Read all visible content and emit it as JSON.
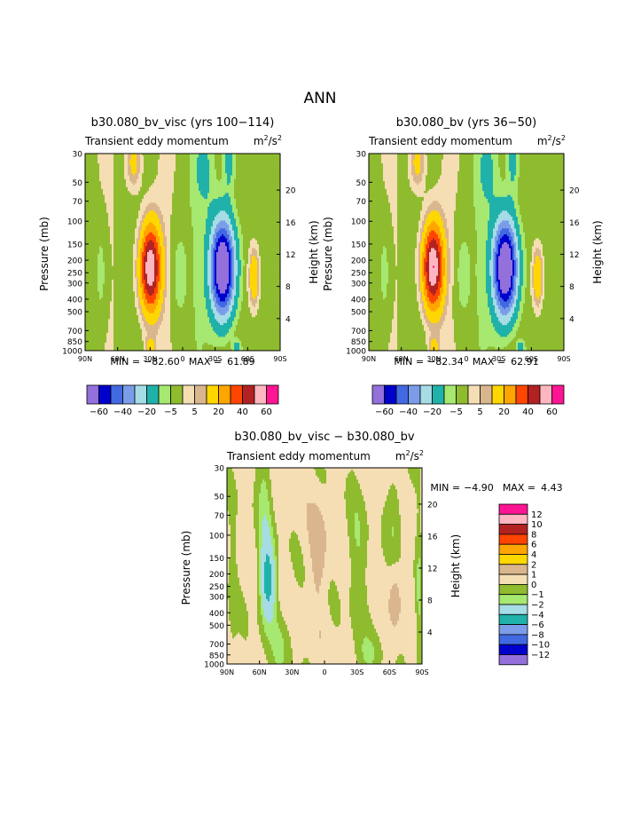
{
  "page_title": "ANN",
  "palettes": {
    "top": [
      "#9370db",
      "#0000cd",
      "#4169e1",
      "#7b9de9",
      "#a6dce6",
      "#20b2aa",
      "#a6e870",
      "#8fbc2f",
      "#f5deb3",
      "#dab68e",
      "#ffd700",
      "#ffa500",
      "#ff4500",
      "#b22222",
      "#ffb6c1",
      "#ff1493"
    ],
    "diff": [
      "#9370db",
      "#0000cd",
      "#4169e1",
      "#7b9de9",
      "#20b2aa",
      "#a6dce6",
      "#a6e870",
      "#8fbc2f",
      "#f5deb3",
      "#dab68e",
      "#ffd700",
      "#ffa500",
      "#ff4500",
      "#b22222",
      "#ffb6c1",
      "#ff1493"
    ]
  },
  "chart_data": [
    {
      "type": "contour",
      "title": "b30.080_bv_visc (yrs 100−114)",
      "variable": "Transient eddy momentum",
      "units_base": "m",
      "units_exp1": "2",
      "units_mid": "/s",
      "units_exp2": "2",
      "ylabel": "Pressure (mb)",
      "y2label": "Height (km)",
      "x_ticks": [
        "90N",
        "60N",
        "30N",
        "0",
        "30S",
        "60S",
        "90S"
      ],
      "x_values": [
        90,
        60,
        30,
        0,
        -30,
        -60,
        -90
      ],
      "y_ticks": [
        "30",
        "50",
        "70",
        "100",
        "150",
        "200",
        "250",
        "300",
        "400",
        "500",
        "700",
        "850",
        "1000"
      ],
      "y_values": [
        30,
        50,
        70,
        100,
        150,
        200,
        250,
        300,
        400,
        500,
        700,
        850,
        1000
      ],
      "y2_ticks": [
        "20",
        "16",
        "12",
        "8",
        "4"
      ],
      "y2_values": [
        20,
        16,
        12,
        8,
        4
      ],
      "min_label": "MIN =",
      "min_value": "−82.60",
      "max_label": "MAX =",
      "max_value": "61.89",
      "features": [
        {
          "lat": 30,
          "p": 230,
          "amp": 62,
          "lat_w": 10,
          "p_w": 0.8
        },
        {
          "lat": -37,
          "p": 230,
          "amp": -82,
          "lat_w": 11,
          "p_w": 0.85
        },
        {
          "lat": -66,
          "p": 270,
          "amp": 24,
          "lat_w": 5,
          "p_w": 0.55
        },
        {
          "lat": 5,
          "p": 260,
          "amp": -6,
          "lat_w": 8,
          "p_w": 1.0
        },
        {
          "lat": 45,
          "p": 35,
          "amp": 18,
          "lat_w": 7,
          "p_w": 0.5
        },
        {
          "lat": -20,
          "p": 40,
          "amp": -8,
          "lat_w": 10,
          "p_w": 0.7
        },
        {
          "lat": -43,
          "p": 30,
          "amp": -15,
          "lat_w": 6,
          "p_w": 0.7
        },
        {
          "lat": 75,
          "p": 250,
          "amp": -7,
          "lat_w": 6,
          "p_w": 1.0
        },
        {
          "lat": 30,
          "p": 950,
          "amp": 15,
          "lat_w": 5,
          "p_w": 0.2
        },
        {
          "lat": -50,
          "p": 970,
          "amp": -15,
          "lat_w": 4,
          "p_w": 0.15
        }
      ]
    },
    {
      "type": "contour",
      "title": "b30.080_bv (yrs 36−50)",
      "variable": "Transient eddy momentum",
      "units_base": "m",
      "units_exp1": "2",
      "units_mid": "/s",
      "units_exp2": "2",
      "ylabel": "Pressure (mb)",
      "y2label": "Height (km)",
      "x_ticks": [
        "90N",
        "60N",
        "30N",
        "0",
        "30S",
        "60S",
        "90S"
      ],
      "x_values": [
        90,
        60,
        30,
        0,
        -30,
        -60,
        -90
      ],
      "y_ticks": [
        "30",
        "50",
        "70",
        "100",
        "150",
        "200",
        "250",
        "300",
        "400",
        "500",
        "700",
        "850",
        "1000"
      ],
      "y_values": [
        30,
        50,
        70,
        100,
        150,
        200,
        250,
        300,
        400,
        500,
        700,
        850,
        1000
      ],
      "y2_ticks": [
        "20",
        "16",
        "12",
        "8",
        "4"
      ],
      "y2_values": [
        20,
        16,
        12,
        8,
        4
      ],
      "min_label": "MIN =",
      "min_value": "−82.34",
      "max_label": "MAX =",
      "max_value": "62.91",
      "features": [
        {
          "lat": 31,
          "p": 225,
          "amp": 63,
          "lat_w": 10,
          "p_w": 0.8
        },
        {
          "lat": -36,
          "p": 230,
          "amp": -82,
          "lat_w": 11,
          "p_w": 0.85
        },
        {
          "lat": -66,
          "p": 270,
          "amp": 24,
          "lat_w": 5,
          "p_w": 0.55
        },
        {
          "lat": 5,
          "p": 260,
          "amp": -6,
          "lat_w": 8,
          "p_w": 1.0
        },
        {
          "lat": 45,
          "p": 35,
          "amp": 18,
          "lat_w": 7,
          "p_w": 0.5
        },
        {
          "lat": -20,
          "p": 40,
          "amp": -8,
          "lat_w": 10,
          "p_w": 0.7
        },
        {
          "lat": -43,
          "p": 30,
          "amp": -15,
          "lat_w": 6,
          "p_w": 0.7
        },
        {
          "lat": 75,
          "p": 250,
          "amp": -7,
          "lat_w": 6,
          "p_w": 1.0
        },
        {
          "lat": 30,
          "p": 950,
          "amp": 15,
          "lat_w": 5,
          "p_w": 0.2
        },
        {
          "lat": -50,
          "p": 970,
          "amp": -15,
          "lat_w": 4,
          "p_w": 0.15
        }
      ]
    },
    {
      "type": "contour",
      "title": "b30.080_bv_visc − b30.080_bv",
      "variable": "Transient eddy momentum",
      "units_base": "m",
      "units_exp1": "2",
      "units_mid": "/s",
      "units_exp2": "2",
      "ylabel": "Pressure (mb)",
      "y2label": "Height (km)",
      "x_ticks": [
        "90N",
        "60N",
        "30N",
        "0",
        "30S",
        "60S",
        "90S"
      ],
      "x_values": [
        90,
        60,
        30,
        0,
        -30,
        -60,
        -90
      ],
      "y_ticks": [
        "30",
        "50",
        "70",
        "100",
        "150",
        "200",
        "250",
        "300",
        "400",
        "500",
        "700",
        "850",
        "1000"
      ],
      "y_values": [
        30,
        50,
        70,
        100,
        150,
        200,
        250,
        300,
        400,
        500,
        700,
        850,
        1000
      ],
      "y2_ticks": [
        "20",
        "16",
        "12",
        "8",
        "4"
      ],
      "y2_values": [
        20,
        16,
        12,
        8,
        4
      ],
      "min_label": "MIN =",
      "min_value": "−4.90",
      "max_label": "MAX =",
      "max_value": "4.43",
      "features": [
        {
          "lat": 52,
          "p": 230,
          "amp": -4.9,
          "lat_w": 7,
          "p_w": 0.7
        },
        {
          "lat": 55,
          "p": 60,
          "amp": -1.6,
          "lat_w": 7,
          "p_w": 1.5
        },
        {
          "lat": 40,
          "p": 700,
          "amp": -1.3,
          "lat_w": 10,
          "p_w": 0.6
        },
        {
          "lat": 5,
          "p": 130,
          "amp": 1.3,
          "lat_w": 8,
          "p_w": 0.9
        },
        {
          "lat": -65,
          "p": 280,
          "amp": 1.3,
          "lat_w": 6,
          "p_w": 0.8
        },
        {
          "lat": -30,
          "p": 150,
          "amp": -1.2,
          "lat_w": 9,
          "p_w": 1.2
        },
        {
          "lat": -65,
          "p": 80,
          "amp": -1.4,
          "lat_w": 7,
          "p_w": 0.9
        },
        {
          "lat": -40,
          "p": 850,
          "amp": -1.2,
          "lat_w": 12,
          "p_w": 0.4
        },
        {
          "lat": 85,
          "p": 300,
          "amp": -0.8,
          "lat_w": 4,
          "p_w": 1.5
        },
        {
          "lat": -87,
          "p": 400,
          "amp": -1.5,
          "lat_w": 3,
          "p_w": 1.5
        }
      ]
    }
  ],
  "colorbar_top": {
    "labels": [
      "−60",
      "−40",
      "−20",
      "−5",
      "5",
      "20",
      "40",
      "60"
    ],
    "label_boundaries": [
      1,
      3,
      5,
      7,
      9,
      11,
      13,
      15
    ],
    "levels": [
      -60,
      -50,
      -40,
      -30,
      -20,
      -10,
      -5,
      0,
      5,
      10,
      20,
      30,
      40,
      50,
      60
    ]
  },
  "colorbar_diff": {
    "labels": [
      "12",
      "10",
      "8",
      "6",
      "4",
      "2",
      "1",
      "0",
      "−1",
      "−2",
      "−4",
      "−6",
      "−8",
      "−10",
      "−12"
    ],
    "levels": [
      12,
      10,
      8,
      6,
      4,
      2,
      1,
      0,
      -1,
      -2,
      -4,
      -6,
      -8,
      -10,
      -12
    ]
  }
}
